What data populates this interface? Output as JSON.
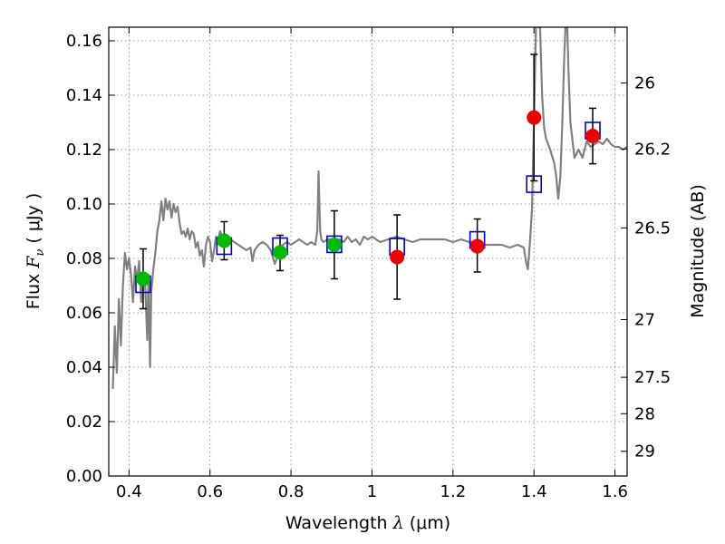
{
  "chart_data": {
    "type": "scatter",
    "xlabel_prefix": "Wavelength  ",
    "xlabel_symbol": "λ",
    "xlabel_unit": " (μm)",
    "ylabel_prefix": "Flux  ",
    "ylabel_symbol": "F",
    "ylabel_subscript": "ν",
    "ylabel_unit": "  ( μJy )",
    "y2label": "Magnitude (AB)",
    "xlim": [
      0.35,
      1.63
    ],
    "ylim": [
      0.0,
      0.165
    ],
    "grid": true,
    "x_ticks": [
      0.4,
      0.6,
      0.8,
      1.0,
      1.2,
      1.4,
      1.6
    ],
    "x_tick_labels": [
      "0.4",
      "0.6",
      "0.8",
      "1",
      "1.2",
      "1.4",
      "1.6"
    ],
    "y_ticks": [
      0.0,
      0.02,
      0.04,
      0.06,
      0.08,
      0.1,
      0.12,
      0.14,
      0.16
    ],
    "y_tick_labels": [
      "0.00",
      "0.02",
      "0.04",
      "0.06",
      "0.08",
      "0.10",
      "0.12",
      "0.14",
      "0.16"
    ],
    "y2_ticks": [
      {
        "label": "26",
        "flux": 0.1445
      },
      {
        "label": "26.2",
        "flux": 0.1202
      },
      {
        "label": "26.5",
        "flux": 0.0912
      },
      {
        "label": "27",
        "flux": 0.0575
      },
      {
        "label": "27.5",
        "flux": 0.0363
      },
      {
        "label": "28",
        "flux": 0.0229
      },
      {
        "label": "29",
        "flux": 0.0091
      }
    ],
    "colors": {
      "spectrum": "#808080",
      "model_box": "#0000cc",
      "green_points": "#00bb00",
      "red_points": "#ee0000",
      "errorbar": "#000000"
    },
    "spectrum": [
      [
        0.36,
        0.032
      ],
      [
        0.365,
        0.055
      ],
      [
        0.37,
        0.038
      ],
      [
        0.375,
        0.065
      ],
      [
        0.38,
        0.048
      ],
      [
        0.385,
        0.07
      ],
      [
        0.39,
        0.082
      ],
      [
        0.395,
        0.076
      ],
      [
        0.4,
        0.08
      ],
      [
        0.405,
        0.074
      ],
      [
        0.41,
        0.064
      ],
      [
        0.415,
        0.077
      ],
      [
        0.42,
        0.072
      ],
      [
        0.425,
        0.079
      ],
      [
        0.43,
        0.064
      ],
      [
        0.435,
        0.074
      ],
      [
        0.44,
        0.07
      ],
      [
        0.445,
        0.05
      ],
      [
        0.448,
        0.074
      ],
      [
        0.452,
        0.04
      ],
      [
        0.455,
        0.068
      ],
      [
        0.46,
        0.076
      ],
      [
        0.465,
        0.082
      ],
      [
        0.47,
        0.09
      ],
      [
        0.475,
        0.094
      ],
      [
        0.48,
        0.101
      ],
      [
        0.485,
        0.094
      ],
      [
        0.49,
        0.102
      ],
      [
        0.495,
        0.098
      ],
      [
        0.5,
        0.101
      ],
      [
        0.505,
        0.095
      ],
      [
        0.51,
        0.1
      ],
      [
        0.515,
        0.097
      ],
      [
        0.52,
        0.099
      ],
      [
        0.525,
        0.093
      ],
      [
        0.53,
        0.089
      ],
      [
        0.535,
        0.09
      ],
      [
        0.54,
        0.088
      ],
      [
        0.545,
        0.091
      ],
      [
        0.55,
        0.087
      ],
      [
        0.555,
        0.09
      ],
      [
        0.56,
        0.089
      ],
      [
        0.565,
        0.084
      ],
      [
        0.57,
        0.086
      ],
      [
        0.575,
        0.081
      ],
      [
        0.58,
        0.083
      ],
      [
        0.585,
        0.077
      ],
      [
        0.59,
        0.085
      ],
      [
        0.595,
        0.088
      ],
      [
        0.6,
        0.086
      ],
      [
        0.605,
        0.079
      ],
      [
        0.61,
        0.083
      ],
      [
        0.615,
        0.088
      ],
      [
        0.62,
        0.087
      ],
      [
        0.625,
        0.09
      ],
      [
        0.63,
        0.088
      ],
      [
        0.635,
        0.089
      ],
      [
        0.64,
        0.087
      ],
      [
        0.645,
        0.088
      ],
      [
        0.65,
        0.087
      ],
      [
        0.66,
        0.086
      ],
      [
        0.67,
        0.085
      ],
      [
        0.68,
        0.084
      ],
      [
        0.69,
        0.083
      ],
      [
        0.7,
        0.084
      ],
      [
        0.705,
        0.079
      ],
      [
        0.71,
        0.083
      ],
      [
        0.72,
        0.085
      ],
      [
        0.73,
        0.086
      ],
      [
        0.74,
        0.085
      ],
      [
        0.75,
        0.083
      ],
      [
        0.76,
        0.078
      ],
      [
        0.765,
        0.08
      ],
      [
        0.77,
        0.084
      ],
      [
        0.78,
        0.085
      ],
      [
        0.79,
        0.086
      ],
      [
        0.8,
        0.085
      ],
      [
        0.81,
        0.086
      ],
      [
        0.82,
        0.087
      ],
      [
        0.83,
        0.086
      ],
      [
        0.84,
        0.085
      ],
      [
        0.85,
        0.086
      ],
      [
        0.86,
        0.085
      ],
      [
        0.865,
        0.09
      ],
      [
        0.868,
        0.112
      ],
      [
        0.872,
        0.09
      ],
      [
        0.875,
        0.087
      ],
      [
        0.88,
        0.086
      ],
      [
        0.89,
        0.087
      ],
      [
        0.9,
        0.087
      ],
      [
        0.91,
        0.086
      ],
      [
        0.92,
        0.087
      ],
      [
        0.93,
        0.086
      ],
      [
        0.94,
        0.088
      ],
      [
        0.95,
        0.086
      ],
      [
        0.96,
        0.087
      ],
      [
        0.97,
        0.085
      ],
      [
        0.98,
        0.088
      ],
      [
        0.99,
        0.087
      ],
      [
        1.0,
        0.088
      ],
      [
        1.02,
        0.086
      ],
      [
        1.04,
        0.087
      ],
      [
        1.06,
        0.088
      ],
      [
        1.08,
        0.087
      ],
      [
        1.1,
        0.086
      ],
      [
        1.12,
        0.087
      ],
      [
        1.14,
        0.087
      ],
      [
        1.16,
        0.087
      ],
      [
        1.18,
        0.087
      ],
      [
        1.2,
        0.086
      ],
      [
        1.22,
        0.087
      ],
      [
        1.24,
        0.086
      ],
      [
        1.26,
        0.086
      ],
      [
        1.28,
        0.085
      ],
      [
        1.3,
        0.085
      ],
      [
        1.32,
        0.085
      ],
      [
        1.34,
        0.084
      ],
      [
        1.36,
        0.085
      ],
      [
        1.375,
        0.084
      ],
      [
        1.38,
        0.079
      ],
      [
        1.385,
        0.076
      ],
      [
        1.39,
        0.086
      ],
      [
        1.395,
        0.098
      ],
      [
        1.4,
        0.13
      ],
      [
        1.405,
        0.166
      ],
      [
        1.41,
        0.165
      ],
      [
        1.415,
        0.165
      ],
      [
        1.42,
        0.14
      ],
      [
        1.425,
        0.128
      ],
      [
        1.43,
        0.124
      ],
      [
        1.44,
        0.12
      ],
      [
        1.45,
        0.115
      ],
      [
        1.455,
        0.11
      ],
      [
        1.46,
        0.102
      ],
      [
        1.465,
        0.11
      ],
      [
        1.47,
        0.13
      ],
      [
        1.475,
        0.155
      ],
      [
        1.478,
        0.166
      ],
      [
        1.482,
        0.166
      ],
      [
        1.485,
        0.15
      ],
      [
        1.49,
        0.13
      ],
      [
        1.5,
        0.117
      ],
      [
        1.51,
        0.12
      ],
      [
        1.52,
        0.117
      ],
      [
        1.53,
        0.123
      ],
      [
        1.54,
        0.121
      ],
      [
        1.55,
        0.122
      ],
      [
        1.56,
        0.123
      ],
      [
        1.57,
        0.122
      ],
      [
        1.58,
        0.124
      ],
      [
        1.59,
        0.122
      ],
      [
        1.6,
        0.121
      ],
      [
        1.61,
        0.121
      ],
      [
        1.62,
        0.12
      ],
      [
        1.63,
        0.121
      ]
    ],
    "model_boxes": [
      {
        "x": 0.435,
        "y": 0.0705
      },
      {
        "x": 0.635,
        "y": 0.0845
      },
      {
        "x": 0.773,
        "y": 0.0845
      },
      {
        "x": 0.907,
        "y": 0.0852
      },
      {
        "x": 1.062,
        "y": 0.0843
      },
      {
        "x": 1.26,
        "y": 0.0868
      },
      {
        "x": 1.4,
        "y": 0.1073
      },
      {
        "x": 1.545,
        "y": 0.127
      }
    ],
    "observations": [
      {
        "x": 0.435,
        "y": 0.0725,
        "yerr_low": 0.0615,
        "yerr_high": 0.0835,
        "color": "green"
      },
      {
        "x": 0.635,
        "y": 0.0865,
        "yerr_low": 0.0795,
        "yerr_high": 0.0935,
        "color": "green"
      },
      {
        "x": 0.773,
        "y": 0.0822,
        "yerr_low": 0.0755,
        "yerr_high": 0.0885,
        "color": "green"
      },
      {
        "x": 0.907,
        "y": 0.085,
        "yerr_low": 0.0725,
        "yerr_high": 0.0975,
        "color": "green"
      },
      {
        "x": 1.062,
        "y": 0.0805,
        "yerr_low": 0.065,
        "yerr_high": 0.096,
        "color": "red"
      },
      {
        "x": 1.26,
        "y": 0.0845,
        "yerr_low": 0.075,
        "yerr_high": 0.0945,
        "color": "red"
      },
      {
        "x": 1.4,
        "y": 0.1318,
        "yerr_low": 0.1085,
        "yerr_high": 0.155,
        "color": "red"
      },
      {
        "x": 1.545,
        "y": 0.125,
        "yerr_low": 0.1148,
        "yerr_high": 0.1352,
        "color": "red"
      }
    ]
  }
}
